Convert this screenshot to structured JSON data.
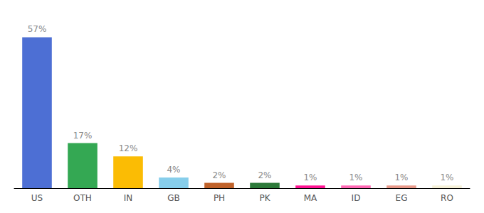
{
  "chart_data": {
    "type": "bar",
    "categories": [
      "US",
      "OTH",
      "IN",
      "GB",
      "PH",
      "PK",
      "MA",
      "ID",
      "EG",
      "RO"
    ],
    "values": [
      57,
      17,
      12,
      4,
      2,
      2,
      1,
      1,
      1,
      1
    ],
    "value_labels": [
      "57%",
      "17%",
      "12%",
      "4%",
      "2%",
      "2%",
      "1%",
      "1%",
      "1%",
      "1%"
    ],
    "colors": [
      "#4d6fd4",
      "#34a853",
      "#fbbc04",
      "#87ceeb",
      "#c0622a",
      "#2d7a3a",
      "#ff1493",
      "#ff69b4",
      "#e8998a",
      "#f5f0d8"
    ],
    "ylim": [
      0,
      63
    ],
    "grid": false,
    "data_labels": true,
    "tick_labels": "x"
  }
}
